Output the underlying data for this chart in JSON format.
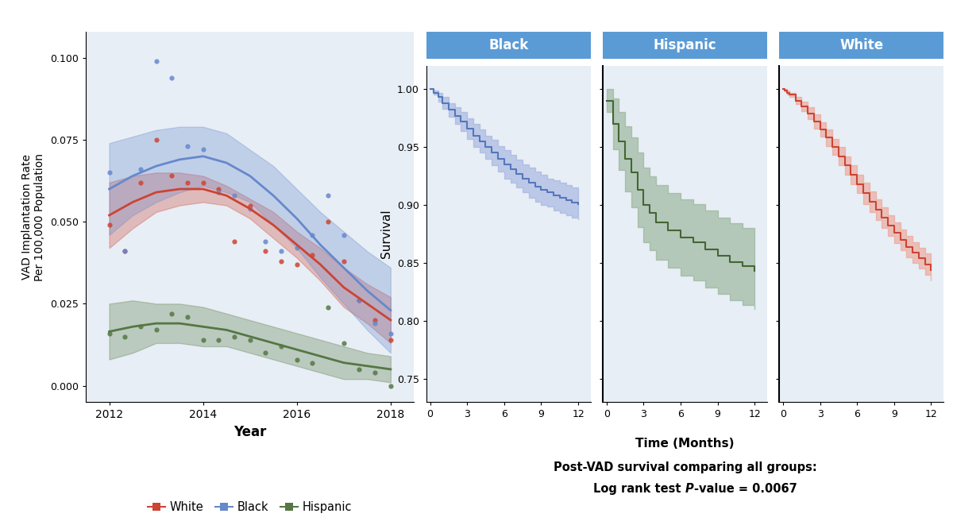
{
  "fig_width": 12.0,
  "fig_height": 6.66,
  "outer_bg": "#ffffff",
  "left_panel_bg": "#e8eef5",
  "right_panel_bg": "#e8eef5",
  "header_color": "#5b9bd5",
  "header_text_color": "#ffffff",
  "left": {
    "ylabel": "VAD Implantation Rate\nPer 100,000 Population",
    "xlabel": "Year",
    "xlim": [
      2011.5,
      2018.5
    ],
    "ylim": [
      -0.005,
      0.108
    ],
    "yticks": [
      0.0,
      0.025,
      0.05,
      0.075,
      0.1
    ],
    "xticks": [
      2012,
      2014,
      2016,
      2018
    ],
    "white_scatter": [
      [
        2012,
        0.049
      ],
      [
        2012.33,
        0.041
      ],
      [
        2012.67,
        0.062
      ],
      [
        2013,
        0.075
      ],
      [
        2013.33,
        0.064
      ],
      [
        2013.67,
        0.062
      ],
      [
        2014,
        0.062
      ],
      [
        2014.33,
        0.06
      ],
      [
        2014.67,
        0.044
      ],
      [
        2015,
        0.055
      ],
      [
        2015.33,
        0.041
      ],
      [
        2015.67,
        0.038
      ],
      [
        2016,
        0.037
      ],
      [
        2016.33,
        0.04
      ],
      [
        2016.67,
        0.05
      ],
      [
        2017,
        0.038
      ],
      [
        2017.33,
        0.026
      ],
      [
        2017.67,
        0.02
      ],
      [
        2018,
        0.014
      ]
    ],
    "black_scatter": [
      [
        2012,
        0.065
      ],
      [
        2012.33,
        0.041
      ],
      [
        2012.67,
        0.066
      ],
      [
        2013,
        0.099
      ],
      [
        2013.33,
        0.094
      ],
      [
        2013.67,
        0.073
      ],
      [
        2014,
        0.072
      ],
      [
        2014.33,
        0.059
      ],
      [
        2014.67,
        0.058
      ],
      [
        2015,
        0.054
      ],
      [
        2015.33,
        0.044
      ],
      [
        2015.67,
        0.041
      ],
      [
        2016,
        0.042
      ],
      [
        2016.33,
        0.046
      ],
      [
        2016.67,
        0.058
      ],
      [
        2017,
        0.046
      ],
      [
        2017.33,
        0.026
      ],
      [
        2017.67,
        0.019
      ],
      [
        2018,
        0.016
      ]
    ],
    "hispanic_scatter": [
      [
        2012,
        0.016
      ],
      [
        2012.33,
        0.015
      ],
      [
        2012.67,
        0.018
      ],
      [
        2013,
        0.017
      ],
      [
        2013.33,
        0.022
      ],
      [
        2013.67,
        0.021
      ],
      [
        2014,
        0.014
      ],
      [
        2014.33,
        0.014
      ],
      [
        2014.67,
        0.015
      ],
      [
        2015,
        0.014
      ],
      [
        2015.33,
        0.01
      ],
      [
        2015.67,
        0.012
      ],
      [
        2016,
        0.008
      ],
      [
        2016.33,
        0.007
      ],
      [
        2016.67,
        0.024
      ],
      [
        2017,
        0.013
      ],
      [
        2017.33,
        0.005
      ],
      [
        2017.67,
        0.004
      ],
      [
        2018,
        0.0
      ]
    ],
    "white_line_x": [
      2012,
      2012.5,
      2013,
      2013.5,
      2014,
      2014.5,
      2015,
      2015.5,
      2016,
      2016.5,
      2017,
      2017.5,
      2018
    ],
    "white_line_y": [
      0.052,
      0.056,
      0.059,
      0.06,
      0.06,
      0.058,
      0.054,
      0.049,
      0.043,
      0.037,
      0.03,
      0.025,
      0.02
    ],
    "white_ci_upper": [
      0.062,
      0.064,
      0.065,
      0.065,
      0.064,
      0.061,
      0.057,
      0.053,
      0.047,
      0.042,
      0.036,
      0.031,
      0.027
    ],
    "white_ci_lower": [
      0.042,
      0.048,
      0.053,
      0.055,
      0.056,
      0.055,
      0.051,
      0.045,
      0.039,
      0.032,
      0.024,
      0.019,
      0.013
    ],
    "black_line_x": [
      2012,
      2012.5,
      2013,
      2013.5,
      2014,
      2014.5,
      2015,
      2015.5,
      2016,
      2016.5,
      2017,
      2017.5,
      2018
    ],
    "black_line_y": [
      0.06,
      0.064,
      0.067,
      0.069,
      0.07,
      0.068,
      0.064,
      0.058,
      0.051,
      0.043,
      0.036,
      0.029,
      0.023
    ],
    "black_ci_upper": [
      0.074,
      0.076,
      0.078,
      0.079,
      0.079,
      0.077,
      0.072,
      0.067,
      0.06,
      0.053,
      0.047,
      0.041,
      0.036
    ],
    "black_ci_lower": [
      0.046,
      0.052,
      0.056,
      0.059,
      0.061,
      0.059,
      0.056,
      0.049,
      0.042,
      0.033,
      0.025,
      0.017,
      0.01
    ],
    "hispanic_line_x": [
      2012,
      2012.5,
      2013,
      2013.5,
      2014,
      2014.5,
      2015,
      2015.5,
      2016,
      2016.5,
      2017,
      2017.5,
      2018
    ],
    "hispanic_line_y": [
      0.0165,
      0.018,
      0.019,
      0.019,
      0.018,
      0.017,
      0.015,
      0.013,
      0.011,
      0.009,
      0.007,
      0.006,
      0.005
    ],
    "hispanic_ci_upper": [
      0.025,
      0.026,
      0.025,
      0.025,
      0.024,
      0.022,
      0.02,
      0.018,
      0.016,
      0.014,
      0.012,
      0.01,
      0.009
    ],
    "hispanic_ci_lower": [
      0.008,
      0.01,
      0.013,
      0.013,
      0.012,
      0.012,
      0.01,
      0.008,
      0.006,
      0.004,
      0.002,
      0.002,
      0.001
    ],
    "white_color": "#cc4433",
    "black_color": "#6688cc",
    "hispanic_color": "#557744"
  },
  "right": {
    "ylabel": "Survival",
    "xlabel": "Time (Months)",
    "ylim": [
      0.73,
      1.02
    ],
    "yticks": [
      0.75,
      0.8,
      0.85,
      0.9,
      0.95,
      1.0
    ],
    "xticks": [
      0,
      3,
      6,
      9,
      12
    ],
    "panels": [
      "Black",
      "Hispanic",
      "White"
    ],
    "panel_line_colors": [
      "#5577bb",
      "#446633",
      "#cc4433"
    ],
    "panel_fill_colors": [
      "#99aadd",
      "#88aa88",
      "#ee9988"
    ],
    "black_km_x": [
      0,
      0.3,
      0.7,
      1,
      1.5,
      2,
      2.5,
      3,
      3.5,
      4,
      4.5,
      5,
      5.5,
      6,
      6.5,
      7,
      7.5,
      8,
      8.5,
      9,
      9.5,
      10,
      10.5,
      11,
      11.5,
      12
    ],
    "black_km_y": [
      1.0,
      0.997,
      0.993,
      0.988,
      0.982,
      0.977,
      0.972,
      0.966,
      0.96,
      0.955,
      0.95,
      0.945,
      0.94,
      0.935,
      0.931,
      0.927,
      0.923,
      0.919,
      0.916,
      0.913,
      0.911,
      0.908,
      0.906,
      0.904,
      0.902,
      0.901
    ],
    "black_km_upper": [
      1.0,
      0.999,
      0.997,
      0.993,
      0.988,
      0.984,
      0.98,
      0.975,
      0.97,
      0.965,
      0.96,
      0.956,
      0.951,
      0.947,
      0.943,
      0.939,
      0.935,
      0.932,
      0.929,
      0.926,
      0.923,
      0.921,
      0.919,
      0.917,
      0.915,
      0.914
    ],
    "black_km_lower": [
      1.0,
      0.995,
      0.989,
      0.983,
      0.976,
      0.97,
      0.964,
      0.957,
      0.95,
      0.945,
      0.94,
      0.934,
      0.929,
      0.923,
      0.919,
      0.915,
      0.911,
      0.906,
      0.903,
      0.9,
      0.899,
      0.895,
      0.893,
      0.891,
      0.889,
      0.888
    ],
    "hispanic_km_x": [
      0,
      0.5,
      1,
      1.5,
      2,
      2.5,
      3,
      3.5,
      4,
      5,
      6,
      7,
      8,
      9,
      10,
      11,
      12
    ],
    "hispanic_km_y": [
      0.99,
      0.97,
      0.955,
      0.94,
      0.928,
      0.913,
      0.9,
      0.893,
      0.885,
      0.878,
      0.872,
      0.868,
      0.862,
      0.856,
      0.851,
      0.847,
      0.843
    ],
    "hispanic_km_upper": [
      1.0,
      0.992,
      0.98,
      0.968,
      0.958,
      0.945,
      0.932,
      0.925,
      0.917,
      0.91,
      0.905,
      0.901,
      0.895,
      0.889,
      0.884,
      0.88,
      0.876
    ],
    "hispanic_km_lower": [
      0.98,
      0.948,
      0.93,
      0.912,
      0.898,
      0.881,
      0.868,
      0.861,
      0.853,
      0.846,
      0.839,
      0.835,
      0.829,
      0.823,
      0.818,
      0.814,
      0.81
    ],
    "white_km_x": [
      0,
      0.1,
      0.3,
      0.5,
      1,
      1.5,
      2,
      2.5,
      3,
      3.5,
      4,
      4.5,
      5,
      5.5,
      6,
      6.5,
      7,
      7.5,
      8,
      8.5,
      9,
      9.5,
      10,
      10.5,
      11,
      11.5,
      12
    ],
    "white_km_y": [
      1.0,
      0.999,
      0.997,
      0.995,
      0.99,
      0.985,
      0.979,
      0.972,
      0.965,
      0.958,
      0.95,
      0.942,
      0.934,
      0.926,
      0.918,
      0.91,
      0.903,
      0.896,
      0.889,
      0.882,
      0.876,
      0.87,
      0.864,
      0.859,
      0.854,
      0.849,
      0.844
    ],
    "white_km_upper": [
      1.0,
      1.0,
      0.999,
      0.997,
      0.993,
      0.989,
      0.984,
      0.978,
      0.971,
      0.965,
      0.957,
      0.95,
      0.942,
      0.934,
      0.926,
      0.919,
      0.912,
      0.905,
      0.898,
      0.891,
      0.885,
      0.879,
      0.873,
      0.868,
      0.863,
      0.858,
      0.853
    ],
    "white_km_lower": [
      1.0,
      0.998,
      0.995,
      0.993,
      0.987,
      0.981,
      0.974,
      0.966,
      0.959,
      0.951,
      0.943,
      0.934,
      0.926,
      0.918,
      0.91,
      0.901,
      0.894,
      0.887,
      0.88,
      0.873,
      0.867,
      0.861,
      0.855,
      0.85,
      0.845,
      0.84,
      0.835
    ],
    "annotation_line1": "Post-VAD survival comparing all groups:",
    "annotation_line2": "Log rank test   = 0.0067"
  }
}
